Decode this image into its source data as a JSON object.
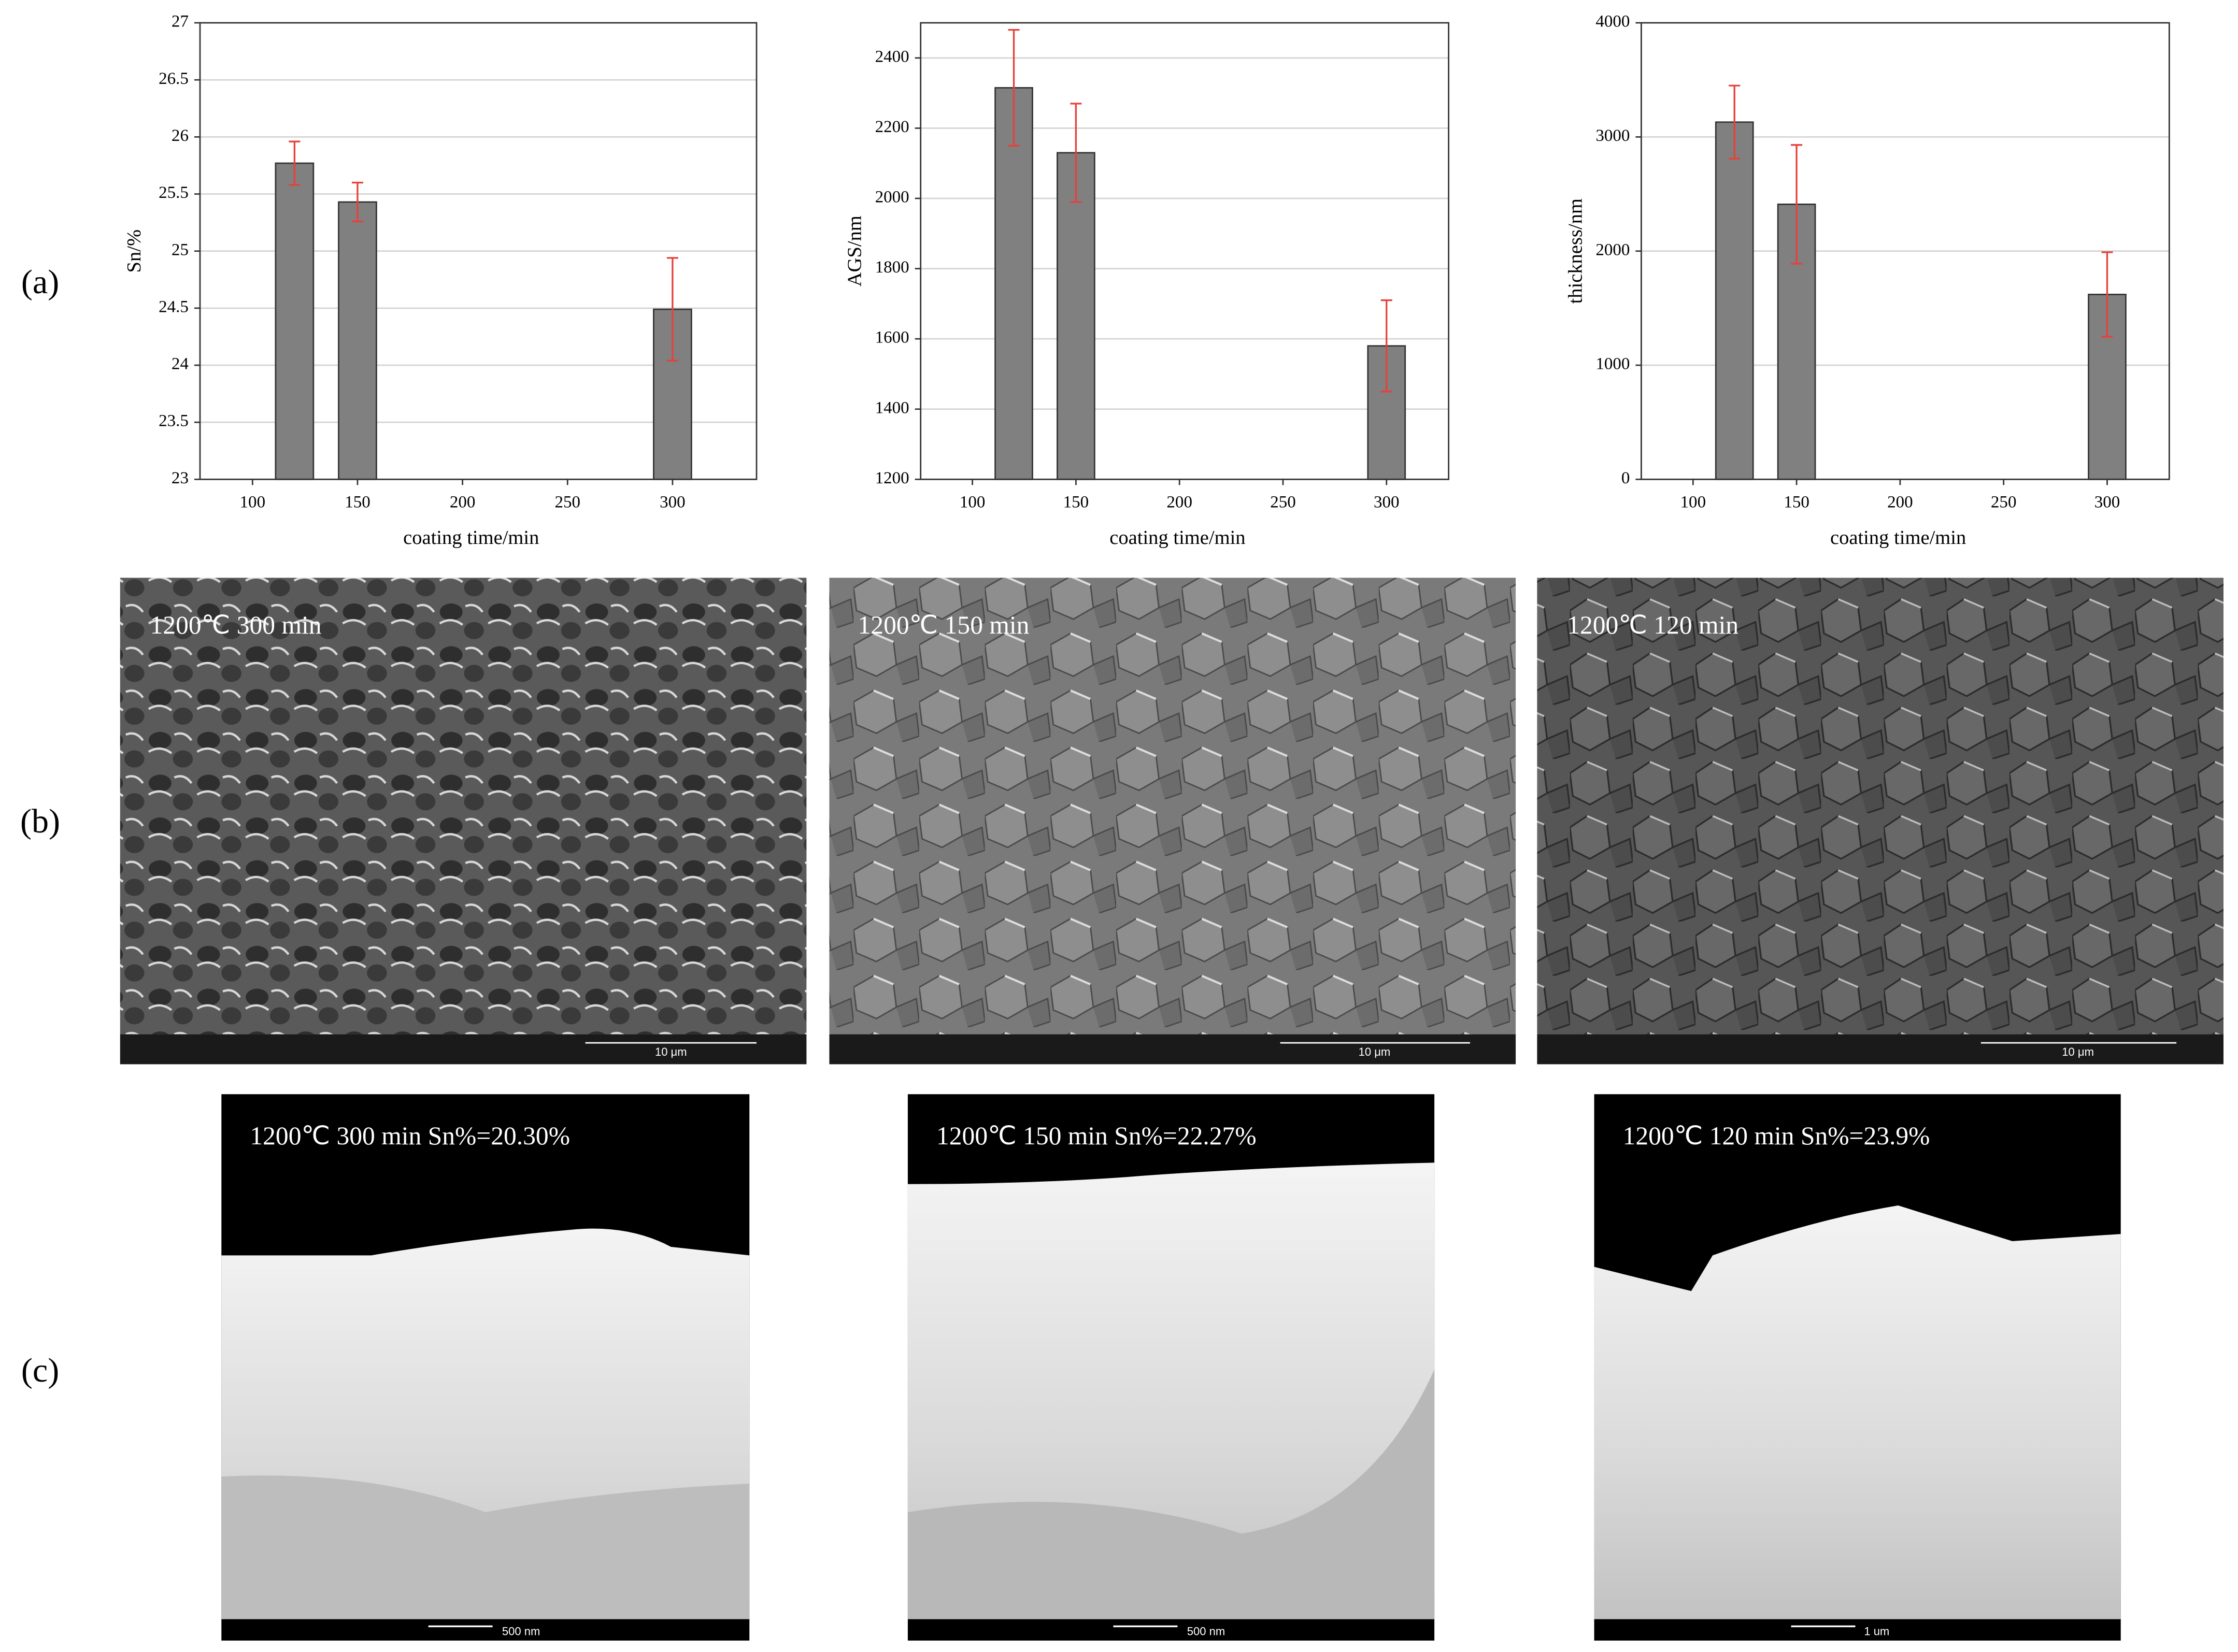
{
  "panel_labels": [
    "(a)",
    "(b)",
    "(c)"
  ],
  "chart_data": [
    {
      "type": "bar",
      "x_label": "coating time/min",
      "y_label": "Sn/%",
      "x": [
        120,
        150,
        300
      ],
      "values": [
        25.77,
        25.43,
        24.49
      ],
      "errors": [
        0.19,
        0.17,
        0.45
      ],
      "color": "#808080",
      "error_color": "#e8403a",
      "xlim": [
        75,
        340
      ],
      "xticks": [
        100,
        150,
        200,
        250,
        300
      ],
      "ylim": [
        23,
        27
      ],
      "yticks": [
        23,
        23.5,
        24,
        24.5,
        25,
        25.5,
        26,
        26.5,
        27
      ],
      "grid": true
    },
    {
      "type": "bar",
      "x_label": "coating time/min",
      "y_label": "AGS/nm",
      "x": [
        120,
        150,
        300
      ],
      "values": [
        2315,
        2130,
        1580
      ],
      "errors": [
        165,
        140,
        130
      ],
      "color": "#808080",
      "error_color": "#e8403a",
      "xlim": [
        75,
        330
      ],
      "xticks": [
        100,
        150,
        200,
        250,
        300
      ],
      "ylim": [
        1200,
        2500
      ],
      "yticks": [
        1200,
        1400,
        1600,
        1800,
        2000,
        2200,
        2400
      ],
      "grid": true
    },
    {
      "type": "bar",
      "x_label": "coating time/min",
      "y_label": "thickness/nm",
      "x": [
        120,
        150,
        300
      ],
      "values": [
        3130,
        2410,
        1620
      ],
      "errors": [
        320,
        520,
        370
      ],
      "color": "#808080",
      "error_color": "#e8403a",
      "xlim": [
        75,
        330
      ],
      "xticks": [
        100,
        150,
        200,
        250,
        300
      ],
      "ylim": [
        0,
        4000
      ],
      "yticks": [
        0,
        1000,
        2000,
        3000,
        4000
      ],
      "grid": true
    }
  ],
  "sem_images": [
    {
      "label": "1200℃ 300 min",
      "scale": "10 μm"
    },
    {
      "label": "1200℃ 150 min",
      "scale": "10 μm"
    },
    {
      "label": "1200℃ 120 min",
      "scale": "10 μm"
    }
  ],
  "tem_images": [
    {
      "label": "1200℃ 300 min Sn%=20.30%",
      "scale": "500 nm"
    },
    {
      "label": "1200℃ 150 min Sn%=22.27%",
      "scale": "500 nm"
    },
    {
      "label": "1200℃ 120 min Sn%=23.9%",
      "scale": "1 um"
    }
  ]
}
